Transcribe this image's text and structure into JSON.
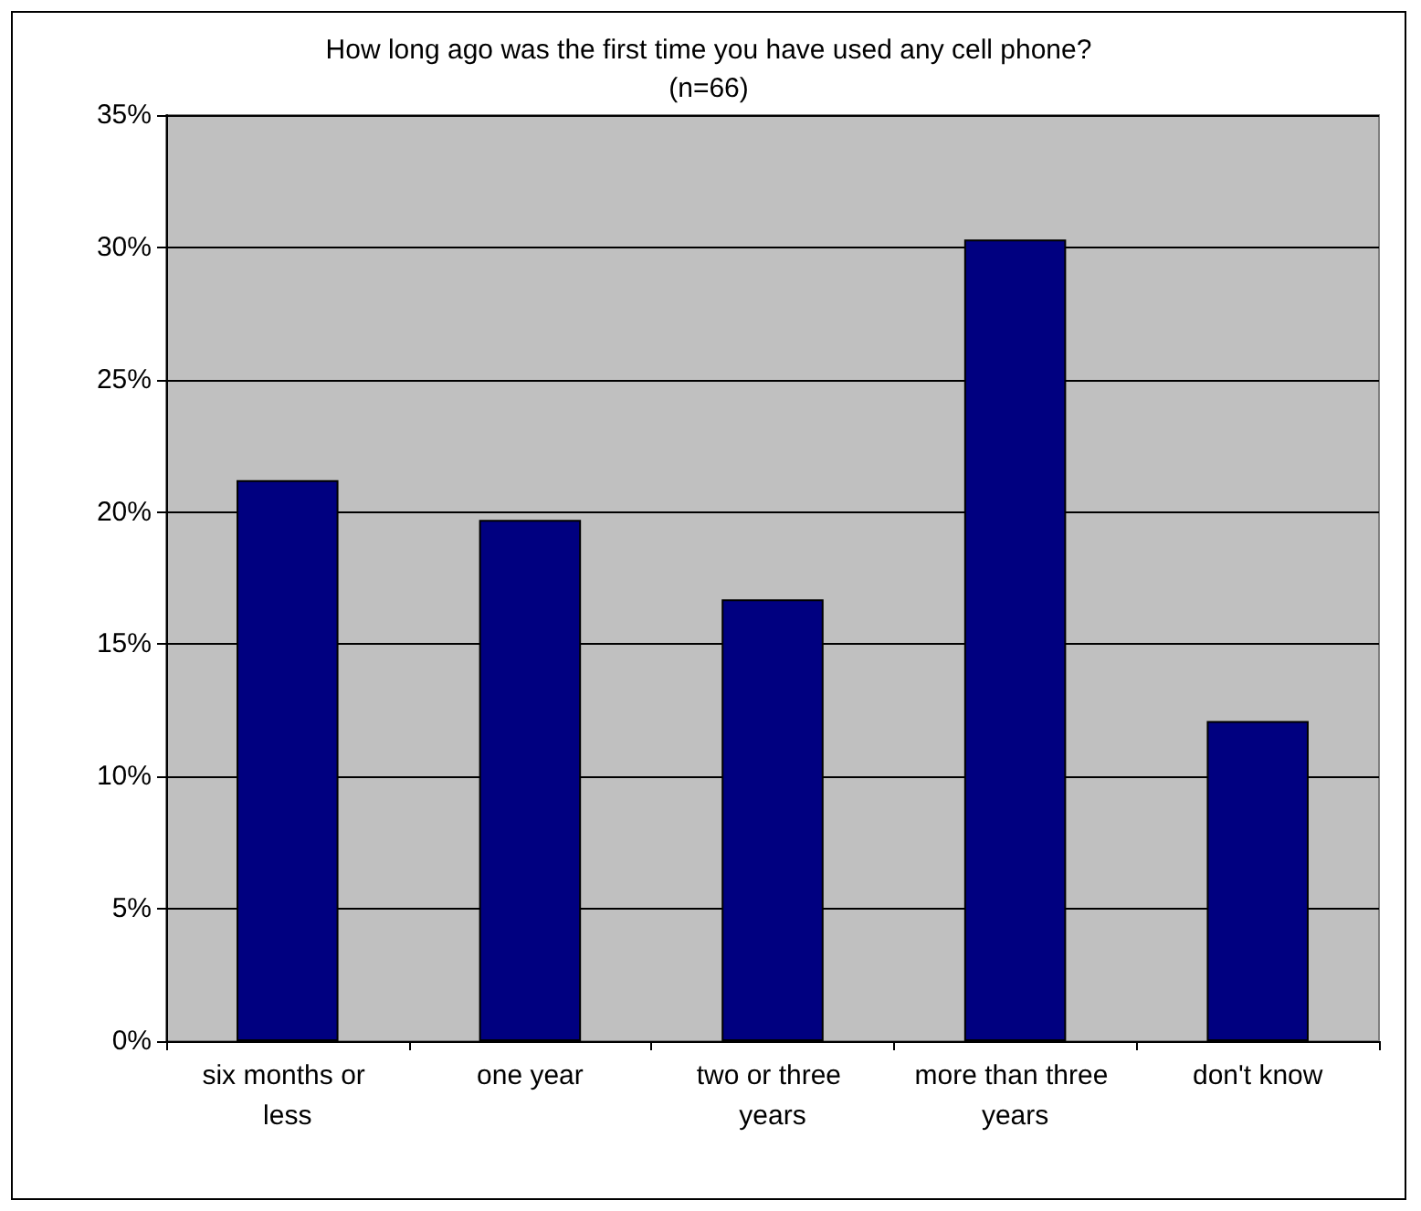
{
  "chart_data": {
    "type": "bar",
    "title": "How long ago was the first time you have used any cell phone?",
    "subtitle": "(n=66)",
    "categories": [
      "six months or less",
      "one year",
      "two or three years",
      "more than three years",
      "don't know"
    ],
    "values": [
      21.2,
      19.7,
      16.7,
      30.3,
      12.1
    ],
    "color": "#000080",
    "ylim": [
      0,
      35
    ],
    "yticks": [
      {
        "value": 0,
        "label": "0%"
      },
      {
        "value": 5,
        "label": "5%"
      },
      {
        "value": 10,
        "label": "10%"
      },
      {
        "value": 15,
        "label": "15%"
      },
      {
        "value": 20,
        "label": "20%"
      },
      {
        "value": 25,
        "label": "25%"
      },
      {
        "value": 30,
        "label": "30%"
      },
      {
        "value": 35,
        "label": "35%"
      }
    ],
    "grid": "y"
  }
}
